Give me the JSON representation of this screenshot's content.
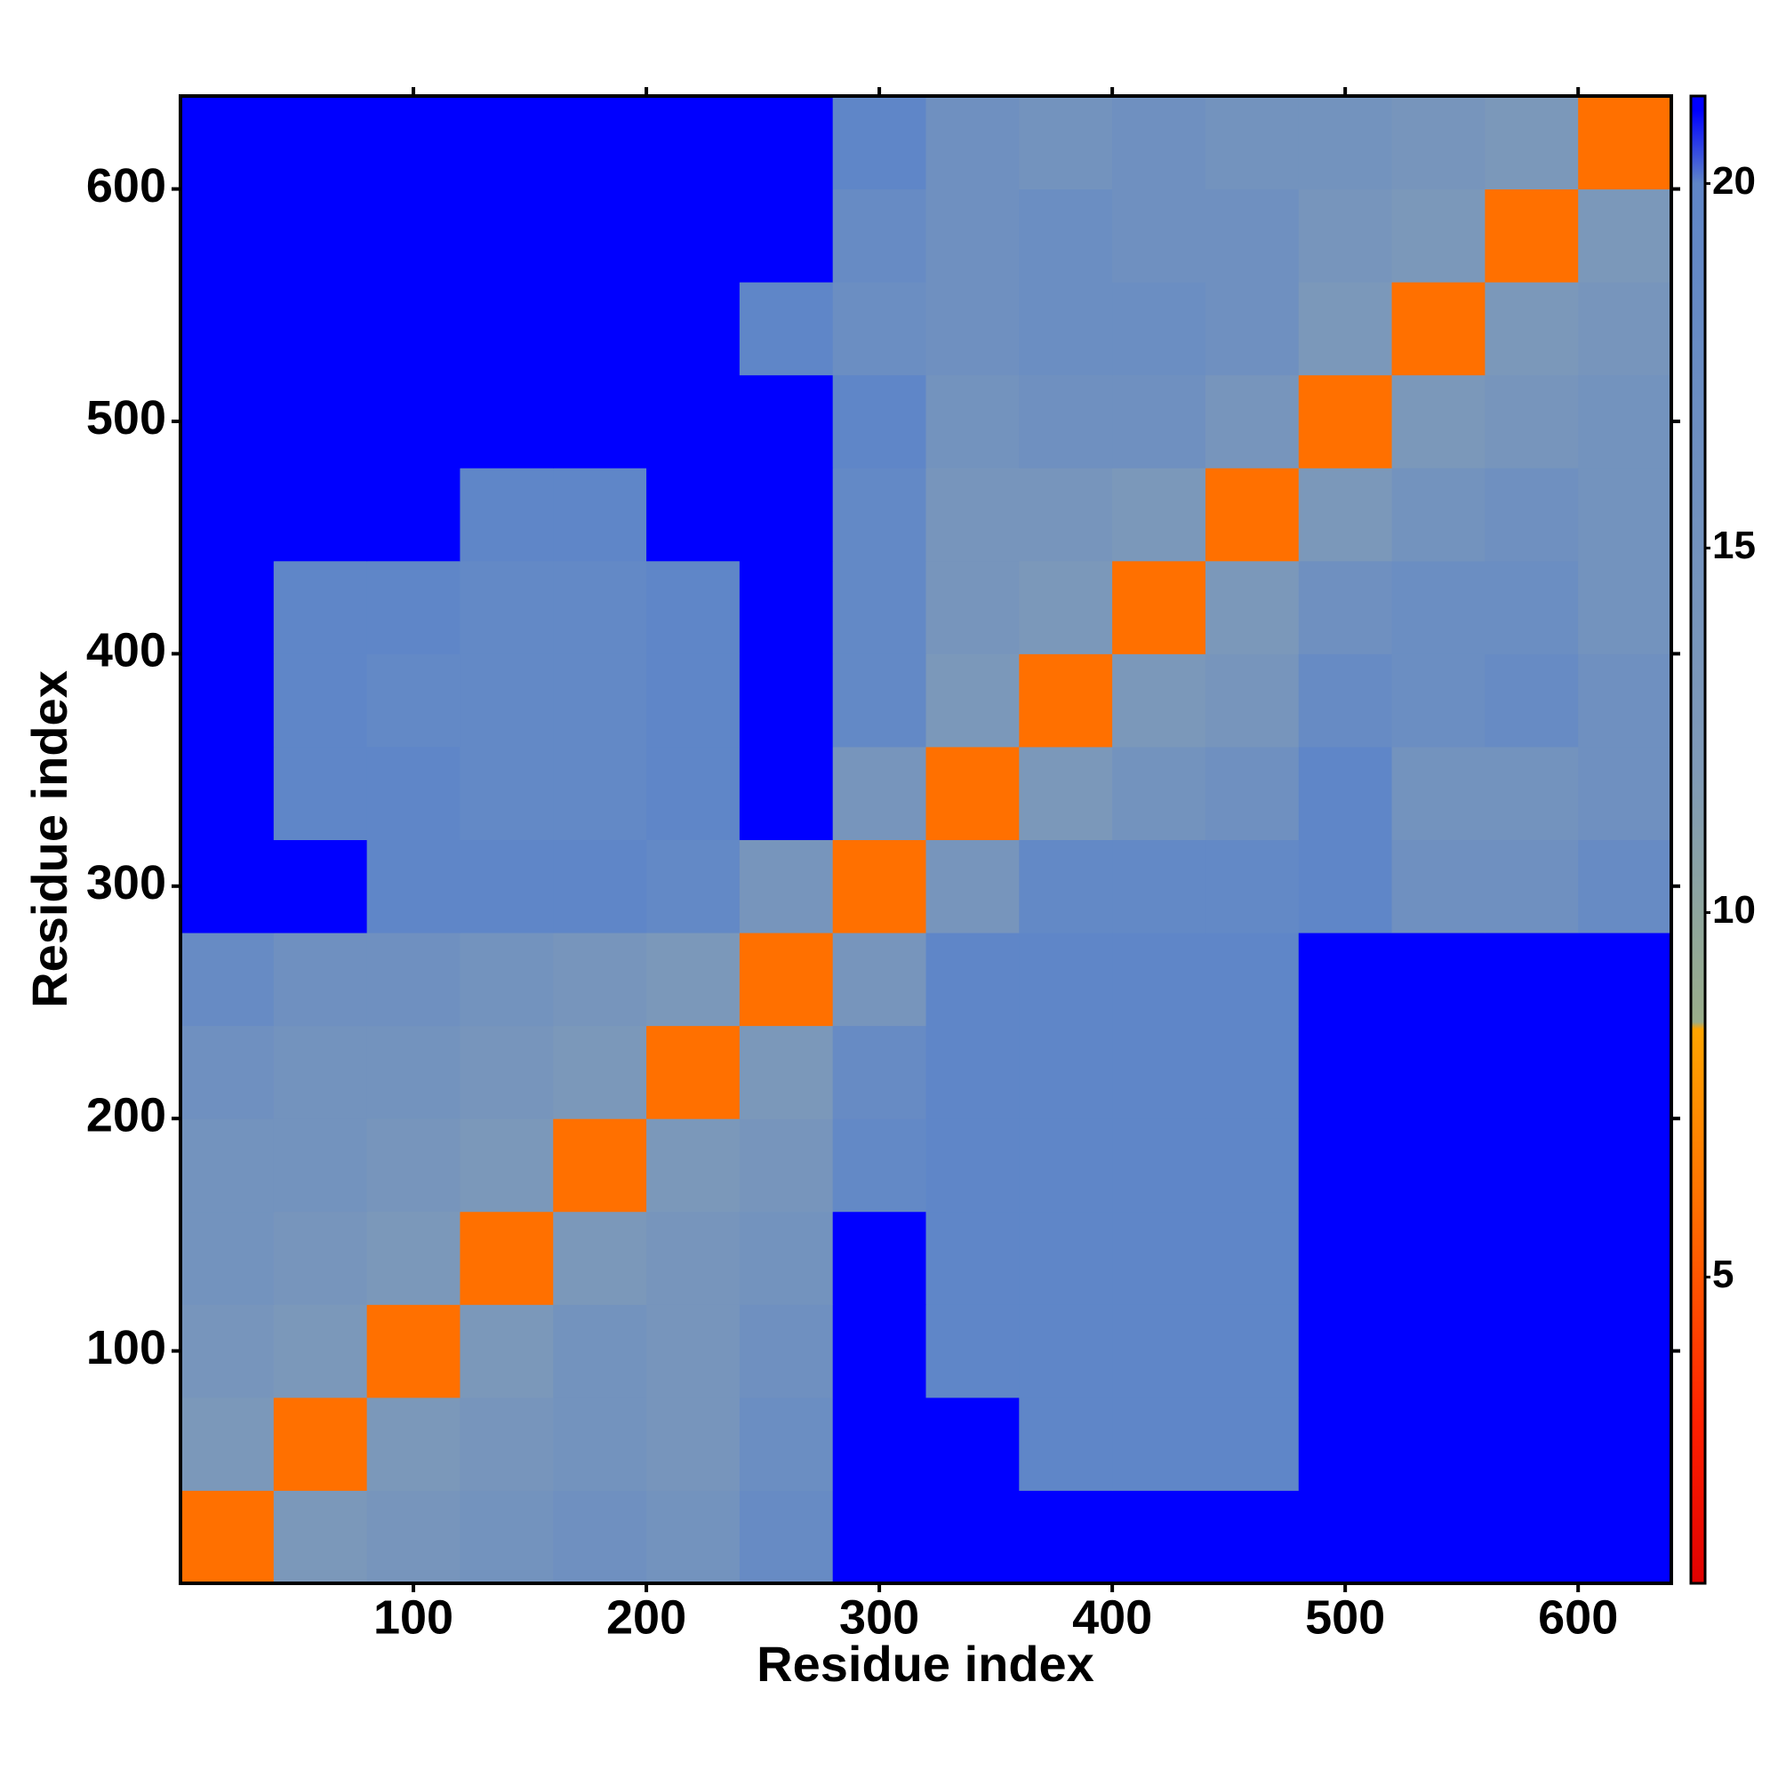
{
  "chart_data": {
    "type": "heatmap",
    "xlabel": "Residue index",
    "ylabel": "Residue index",
    "xbins": [
      0,
      40,
      80,
      120,
      160,
      200,
      240,
      280,
      320,
      360,
      400,
      440,
      480,
      520,
      560,
      600,
      640
    ],
    "ybins": [
      0,
      40,
      80,
      120,
      160,
      200,
      240,
      280,
      320,
      360,
      400,
      440,
      480,
      520,
      560,
      600,
      640
    ],
    "values": [
      [
        6,
        13,
        14,
        15,
        16,
        15,
        18,
        21,
        21,
        21,
        21,
        21,
        21,
        21,
        21,
        21
      ],
      [
        13,
        6,
        13,
        14,
        15,
        14,
        17,
        21,
        21,
        20,
        20,
        20,
        21,
        21,
        21,
        21
      ],
      [
        14,
        13,
        6,
        13,
        15,
        14,
        16,
        21,
        20,
        20,
        20,
        20,
        21,
        21,
        21,
        21
      ],
      [
        15,
        14,
        13,
        6,
        13,
        14,
        15,
        21,
        20,
        20,
        20,
        20,
        21,
        21,
        21,
        21
      ],
      [
        15,
        15,
        14,
        13,
        6,
        13,
        14,
        19,
        20,
        20,
        20,
        20,
        21,
        21,
        21,
        21
      ],
      [
        16,
        15,
        15,
        14,
        13,
        6,
        13,
        18,
        20,
        20,
        20,
        20,
        21,
        21,
        21,
        21
      ],
      [
        18,
        16,
        16,
        15,
        14,
        13,
        6,
        14,
        20,
        20,
        20,
        20,
        21,
        21,
        21,
        21
      ],
      [
        21,
        21,
        20,
        20,
        20,
        19,
        14,
        6,
        14,
        19,
        19,
        19,
        20,
        16,
        16,
        18
      ],
      [
        21,
        20,
        20,
        19,
        19,
        20,
        21,
        14,
        6,
        13,
        15,
        16,
        20,
        15,
        15,
        16
      ],
      [
        21,
        20,
        19,
        19,
        19,
        20,
        21,
        19,
        13,
        6,
        13,
        14,
        18,
        17,
        18,
        16
      ],
      [
        21,
        20,
        20,
        19,
        19,
        20,
        21,
        19,
        14,
        13,
        6,
        13,
        16,
        17,
        17,
        15
      ],
      [
        21,
        21,
        21,
        20,
        20,
        21,
        21,
        19,
        14,
        14,
        13,
        6,
        13,
        15,
        16,
        15
      ],
      [
        21,
        21,
        21,
        21,
        21,
        21,
        21,
        20,
        15,
        16,
        16,
        14,
        6,
        13,
        14,
        15
      ],
      [
        21,
        21,
        21,
        21,
        21,
        21,
        20,
        17,
        16,
        17,
        17,
        16,
        13,
        6,
        13,
        14
      ],
      [
        21,
        21,
        21,
        21,
        21,
        21,
        21,
        18,
        16,
        17,
        16,
        16,
        14,
        13,
        6,
        13
      ],
      [
        21,
        21,
        21,
        21,
        21,
        21,
        21,
        20,
        16,
        15,
        16,
        15,
        15,
        14,
        13,
        6
      ]
    ],
    "xlim": [
      0,
      640
    ],
    "ylim": [
      0,
      640
    ],
    "xticks": [
      100,
      200,
      300,
      400,
      500,
      600
    ],
    "yticks": [
      100,
      200,
      300,
      400,
      500,
      600
    ],
    "colorbar": {
      "lim": [
        0.8,
        21.2
      ],
      "ticks": [
        5,
        10,
        15,
        20
      ],
      "stops": [
        {
          "value": 0.8,
          "color": "#e00000"
        },
        {
          "value": 3,
          "color": "#ff2000"
        },
        {
          "value": 6,
          "color": "#ff7000"
        },
        {
          "value": 8.4,
          "color": "#ffa500"
        },
        {
          "value": 8.5,
          "color": "#9aae8a"
        },
        {
          "value": 12,
          "color": "#7f9ab8"
        },
        {
          "value": 20,
          "color": "#5f86c8"
        },
        {
          "value": 21,
          "color": "#0000ff"
        },
        {
          "value": 21.2,
          "color": "#0000ff"
        }
      ]
    }
  }
}
